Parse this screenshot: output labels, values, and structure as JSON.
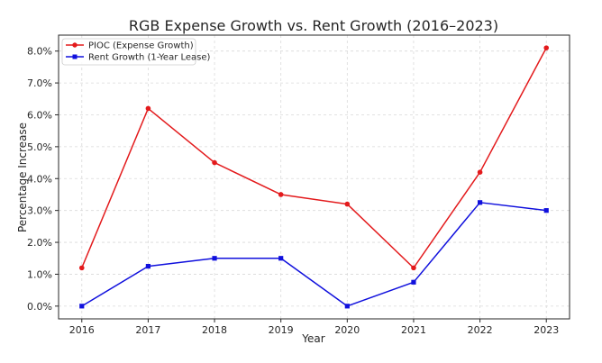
{
  "chart_data": {
    "type": "line",
    "title": "RGB Expense Growth vs. Rent Growth (2016–2023)",
    "xlabel": "Year",
    "ylabel": "Percentage Increase",
    "x": [
      2016,
      2017,
      2018,
      2019,
      2020,
      2021,
      2022,
      2023
    ],
    "xlim": [
      2015.65,
      2023.35
    ],
    "ylim": [
      -0.4,
      8.5
    ],
    "yticks": [
      0,
      1,
      2,
      3,
      4,
      5,
      6,
      7,
      8
    ],
    "ytick_labels": [
      "0.0%",
      "1.0%",
      "2.0%",
      "3.0%",
      "4.0%",
      "5.0%",
      "6.0%",
      "7.0%",
      "8.0%"
    ],
    "xtick_labels": [
      "2016",
      "2017",
      "2018",
      "2019",
      "2020",
      "2021",
      "2022",
      "2023"
    ],
    "grid": true,
    "legend_position": "top-left",
    "series": [
      {
        "name": "PIOC (Expense Growth)",
        "color": "#e31a1c",
        "marker": "circle",
        "values": [
          1.2,
          6.2,
          4.5,
          3.5,
          3.2,
          1.2,
          4.2,
          8.1
        ]
      },
      {
        "name": "Rent Growth (1-Year Lease)",
        "color": "#1010dd",
        "marker": "square",
        "values": [
          0.0,
          1.25,
          1.5,
          1.5,
          0.0,
          0.75,
          3.25,
          3.0
        ]
      }
    ]
  }
}
